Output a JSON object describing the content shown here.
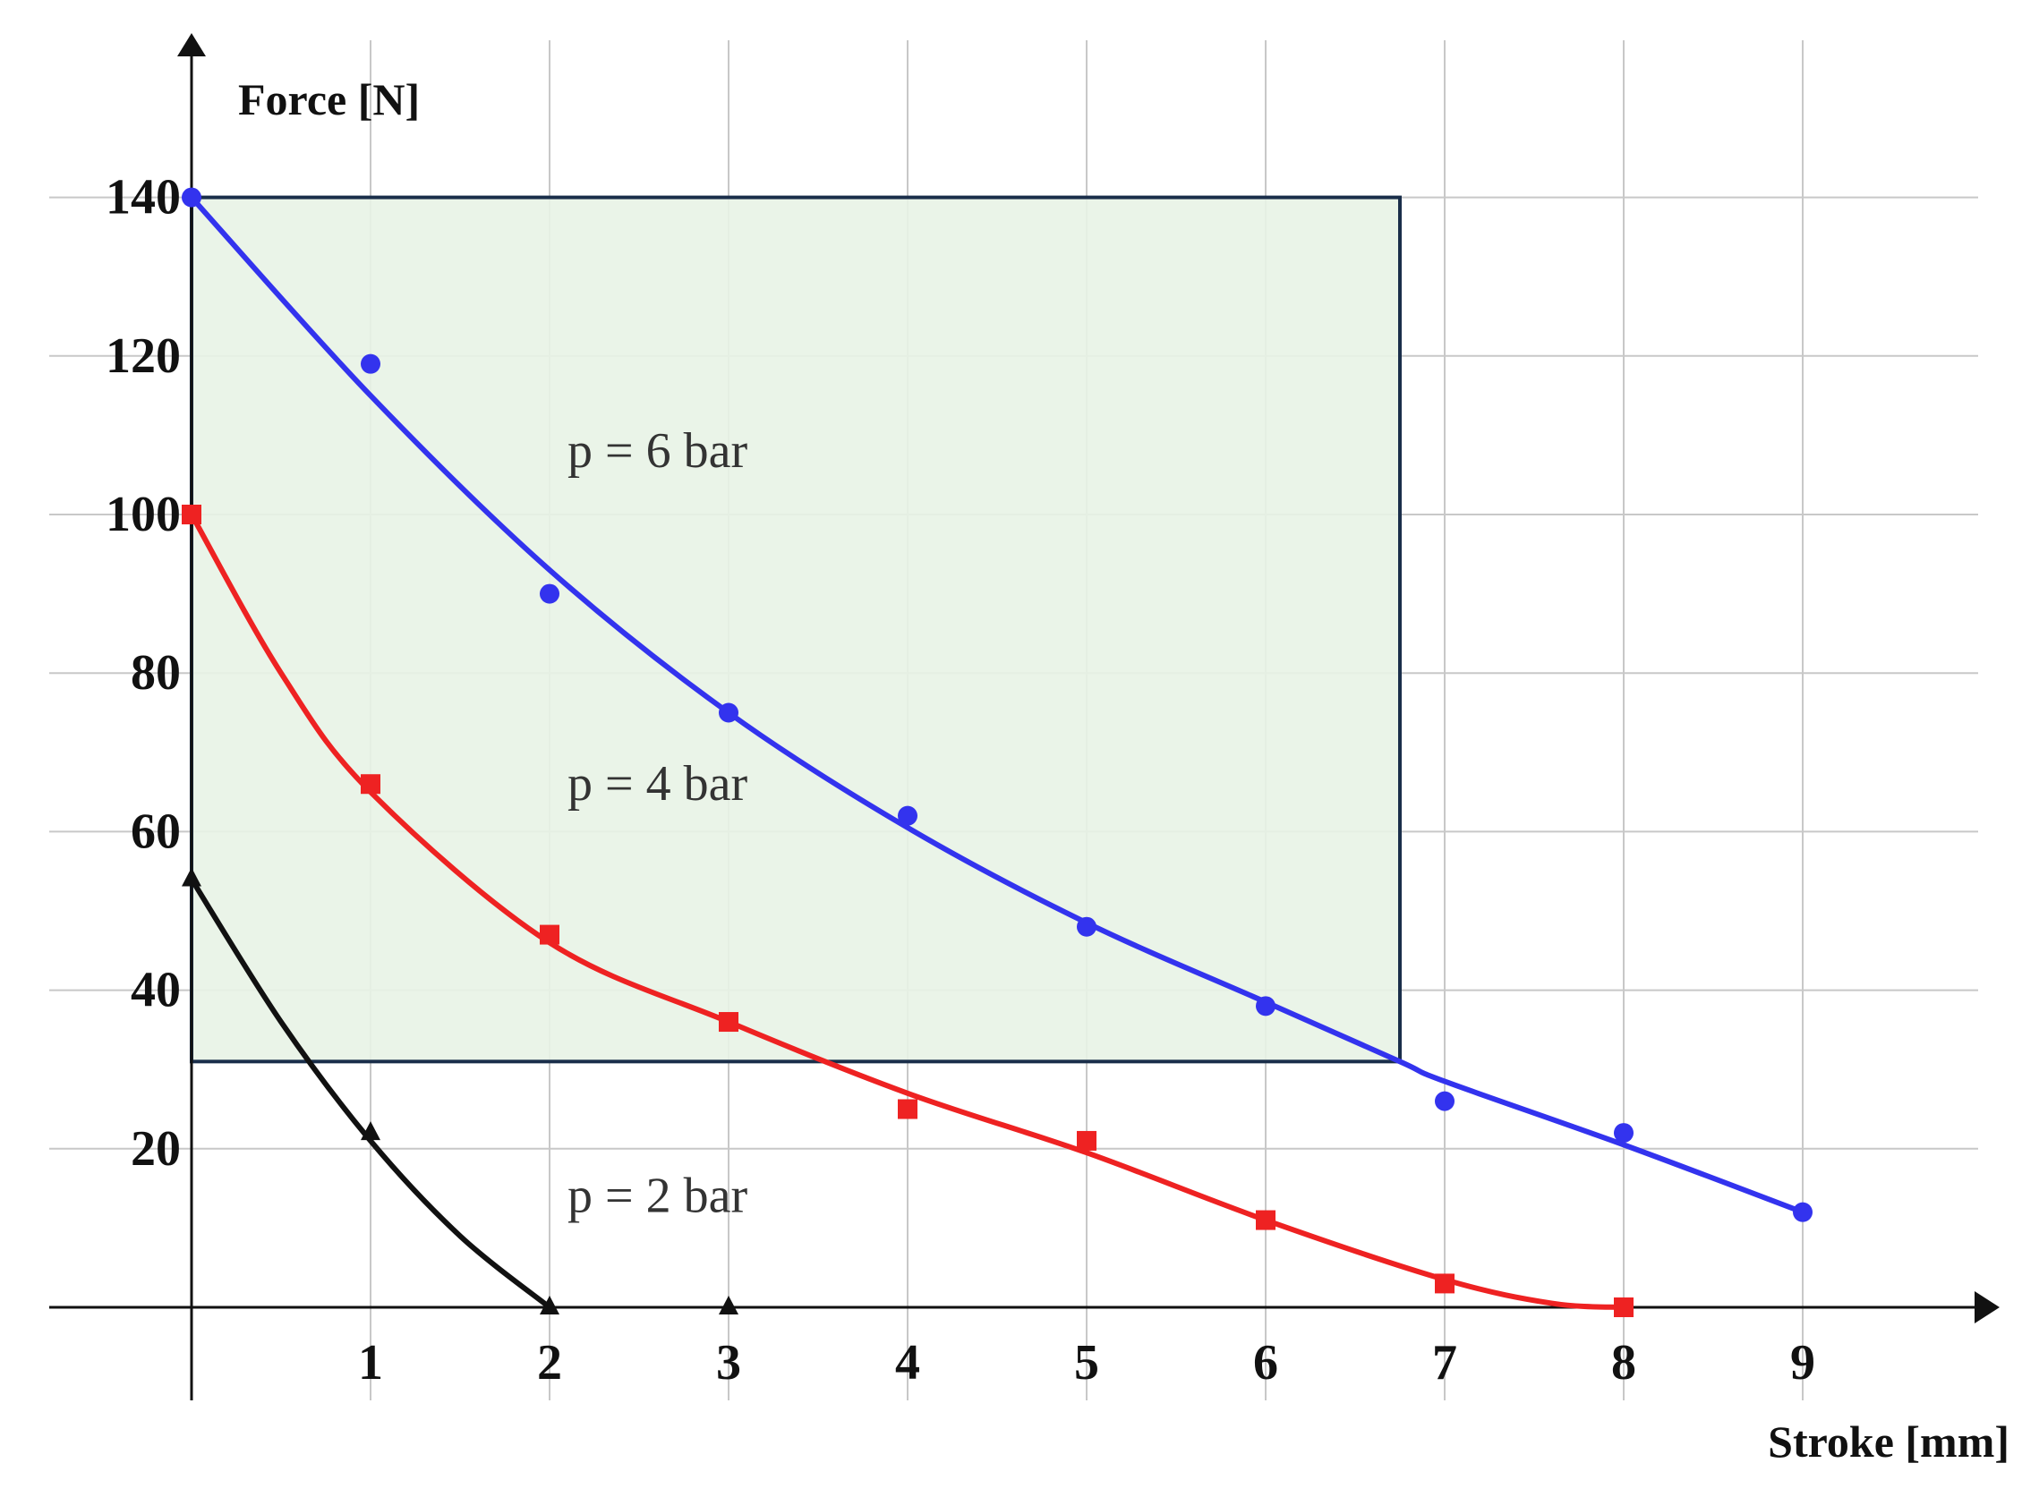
{
  "chart_data": {
    "type": "line",
    "xlabel": "Stroke [mm]",
    "ylabel": "Force [N]",
    "xlim": [
      -0.8,
      9.9
    ],
    "ylim": [
      -12,
      160
    ],
    "x_ticks": [
      1,
      2,
      3,
      4,
      5,
      6,
      7,
      8,
      9
    ],
    "y_ticks": [
      20,
      40,
      60,
      80,
      100,
      120,
      140
    ],
    "grid": true,
    "region": {
      "x_range": [
        0,
        6.75
      ],
      "y_range": [
        31,
        140
      ],
      "fill_color": "#e8f3e6",
      "stroke_color": "#1a2e4a"
    },
    "series": [
      {
        "name": "p = 6 bar",
        "color": "#3333ee",
        "marker": "circle",
        "points": [
          [
            0,
            140
          ],
          [
            1,
            119
          ],
          [
            2,
            90
          ],
          [
            3,
            75
          ],
          [
            4,
            62
          ],
          [
            5,
            48
          ],
          [
            6,
            38
          ],
          [
            7,
            26
          ],
          [
            8,
            22
          ],
          [
            9,
            12
          ]
        ],
        "fit": [
          [
            0,
            140
          ],
          [
            1,
            115
          ],
          [
            2,
            93
          ],
          [
            3,
            75
          ],
          [
            4,
            60.5
          ],
          [
            5,
            48.5
          ],
          [
            6,
            38.5
          ],
          [
            6.75,
            31
          ],
          [
            7,
            28.5
          ],
          [
            8,
            20.5
          ],
          [
            9,
            12
          ]
        ]
      },
      {
        "name": "p = 4 bar",
        "color": "#ee2222",
        "marker": "square",
        "points": [
          [
            0,
            100
          ],
          [
            1,
            66
          ],
          [
            2,
            47
          ],
          [
            3,
            36
          ],
          [
            4,
            25
          ],
          [
            5,
            21
          ],
          [
            6,
            11
          ],
          [
            7,
            3
          ],
          [
            8,
            0
          ]
        ],
        "fit": [
          [
            0,
            100
          ],
          [
            0.5,
            80
          ],
          [
            1,
            65
          ],
          [
            2,
            46
          ],
          [
            3,
            36
          ],
          [
            4,
            27
          ],
          [
            5,
            19.5
          ],
          [
            6,
            11
          ],
          [
            7,
            3.5
          ],
          [
            7.6,
            0.5
          ],
          [
            8,
            0
          ]
        ]
      },
      {
        "name": "p = 2 bar",
        "color": "#111111",
        "marker": "triangle",
        "points": [
          [
            0,
            54
          ],
          [
            1,
            22
          ],
          [
            2,
            0
          ],
          [
            3,
            0
          ]
        ],
        "fit": [
          [
            0,
            54
          ],
          [
            0.5,
            36
          ],
          [
            1,
            21
          ],
          [
            1.5,
            9
          ],
          [
            2,
            0
          ]
        ]
      }
    ],
    "annotations": [
      {
        "text": "p = 6 bar",
        "x": 2.1,
        "y": 106
      },
      {
        "text": "p = 4 bar",
        "x": 2.1,
        "y": 64
      },
      {
        "text": "p = 2 bar",
        "x": 2.1,
        "y": 12
      }
    ]
  }
}
